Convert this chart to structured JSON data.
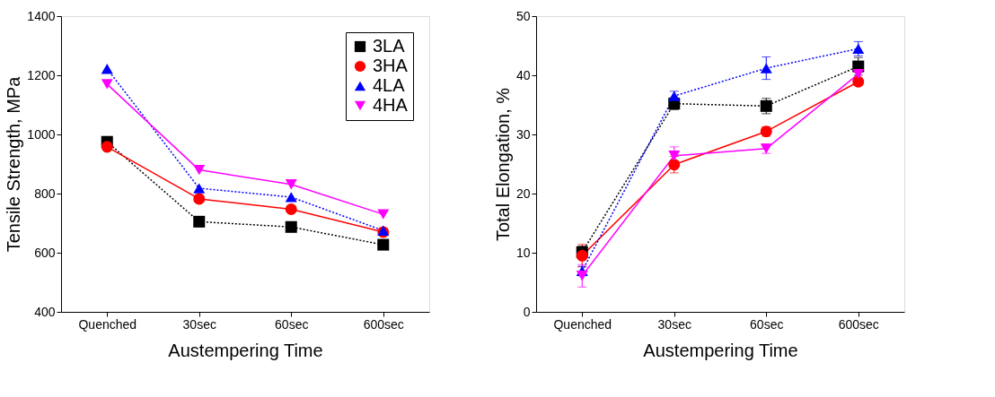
{
  "chart_data": [
    {
      "type": "line",
      "xlabel": "Austempering Time",
      "ylabel": "Tensile Strength, MPa",
      "categories": [
        "Quenched",
        "30sec",
        "60sec",
        "600sec"
      ],
      "ylim": [
        400,
        1400
      ],
      "yticks": [
        400,
        600,
        800,
        1000,
        1200,
        1400
      ],
      "grid": false,
      "legend": "top right",
      "series": [
        {
          "name": "3LA",
          "color": "#000000",
          "marker": "square",
          "line_style": "dotted",
          "values": [
            975,
            705,
            687,
            627
          ]
        },
        {
          "name": "3HA",
          "color": "#ff0000",
          "marker": "circle",
          "line_style": "solid",
          "values": [
            958,
            782,
            747,
            670
          ]
        },
        {
          "name": "4LA",
          "color": "#0000ff",
          "marker": "triangle",
          "line_style": "dotted",
          "values": [
            1222,
            818,
            788,
            675
          ]
        },
        {
          "name": "4HA",
          "color": "#ff00ff",
          "marker": "triangle-down",
          "line_style": "solid",
          "values": [
            1170,
            880,
            831,
            730
          ]
        }
      ]
    },
    {
      "type": "line",
      "xlabel": "Austempering Time",
      "ylabel": "Total Elongation, %",
      "categories": [
        "Quenched",
        "30sec",
        "60sec",
        "600sec"
      ],
      "ylim": [
        0,
        50
      ],
      "yticks": [
        0,
        10,
        20,
        30,
        40,
        50
      ],
      "grid": false,
      "legend": "bottom right",
      "series": [
        {
          "name": "3LA",
          "color": "#000000",
          "marker": "square",
          "line_style": "dotted",
          "values": [
            10.1,
            35.2,
            34.8,
            41.5
          ],
          "errors": [
            1.0,
            1.0,
            1.3,
            1.5
          ]
        },
        {
          "name": "3HA",
          "color": "#ff0000",
          "marker": "circle",
          "line_style": "solid",
          "values": [
            9.5,
            24.9,
            30.5,
            38.9
          ],
          "errors": [
            1.9,
            1.4,
            0.8,
            0.6
          ]
        },
        {
          "name": "4LA",
          "color": "#0000ff",
          "marker": "triangle",
          "line_style": "dotted",
          "values": [
            6.9,
            36.5,
            41.2,
            44.5
          ],
          "errors": [
            0.8,
            0.8,
            1.9,
            1.2
          ]
        },
        {
          "name": "4HA",
          "color": "#ff00ff",
          "marker": "triangle-down",
          "line_style": "solid",
          "values": [
            6.1,
            26.4,
            27.6,
            40.2
          ],
          "errors": [
            1.9,
            1.5,
            0.8,
            0.8
          ]
        }
      ]
    }
  ]
}
